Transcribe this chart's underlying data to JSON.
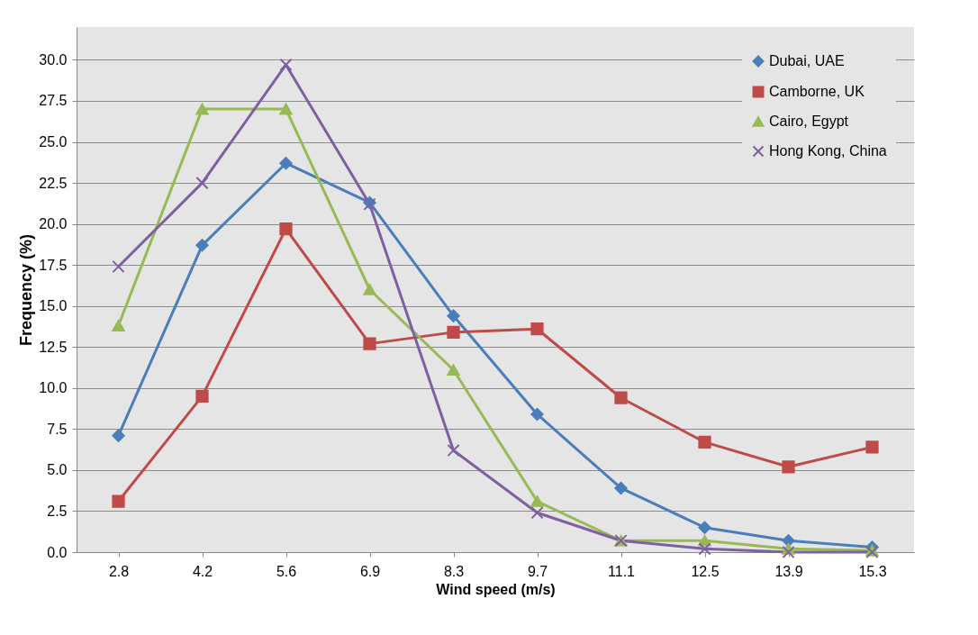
{
  "chart_data": {
    "type": "line",
    "xlabel": "Wind speed (m/s)",
    "ylabel": "Frequency  (%)",
    "categories": [
      "2.8",
      "4.2",
      "5.6",
      "6.9",
      "8.3",
      "9.7",
      "11.1",
      "12.5",
      "13.9",
      "15.3"
    ],
    "series": [
      {
        "name": "Dubai, UAE",
        "color": "#4a7ebb",
        "marker": "diamond",
        "values": [
          7.1,
          18.7,
          23.7,
          21.3,
          14.4,
          8.4,
          3.9,
          1.5,
          0.7,
          0.3
        ]
      },
      {
        "name": "Camborne, UK",
        "color": "#be4b48",
        "marker": "square",
        "values": [
          3.1,
          9.5,
          19.7,
          12.7,
          13.4,
          13.6,
          9.4,
          6.7,
          5.2,
          6.4
        ]
      },
      {
        "name": "Cairo, Egypt",
        "color": "#98b954",
        "marker": "triangle",
        "values": [
          13.8,
          27.0,
          27.0,
          16.0,
          11.1,
          3.1,
          0.7,
          0.7,
          0.2,
          0.1
        ]
      },
      {
        "name": "Hong Kong, China",
        "color": "#7d60a0",
        "marker": "cross",
        "values": [
          17.4,
          22.5,
          29.7,
          21.2,
          6.2,
          2.4,
          0.7,
          0.2,
          0.0,
          0.0
        ]
      }
    ],
    "ylim": [
      0,
      32
    ],
    "yticks": [
      {
        "value": 0,
        "label": "0.0"
      },
      {
        "value": 2.5,
        "label": "2.5"
      },
      {
        "value": 5,
        "label": "5.0"
      },
      {
        "value": 7.5,
        "label": "7.5"
      },
      {
        "value": 10,
        "label": "10.0"
      },
      {
        "value": 12.5,
        "label": "12.5"
      },
      {
        "value": 15,
        "label": "15.0"
      },
      {
        "value": 17.5,
        "label": "17.5"
      },
      {
        "value": 20,
        "label": "20.0"
      },
      {
        "value": 22.5,
        "label": "22.5"
      },
      {
        "value": 25,
        "label": "25.0"
      },
      {
        "value": 27.5,
        "label": "27.5"
      },
      {
        "value": 30,
        "label": "30.0"
      }
    ],
    "grid": "y",
    "legend": "top right"
  }
}
